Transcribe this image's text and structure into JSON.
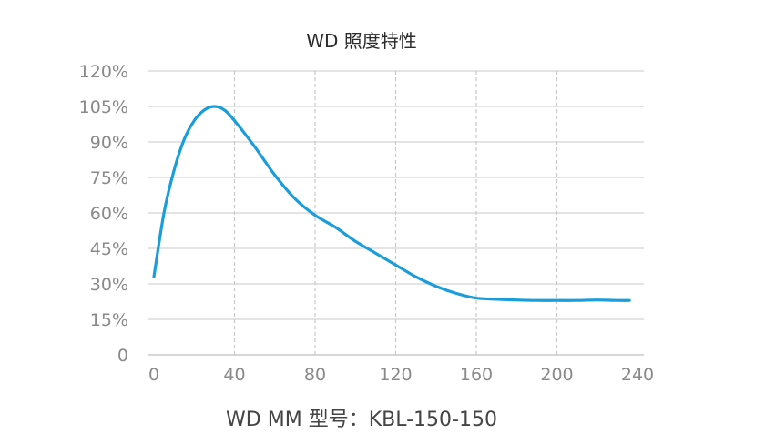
{
  "chart_data": {
    "type": "line",
    "title": "WD 照度特性",
    "xlabel": "WD MM 型号：KBL-150-150",
    "ylabel": "",
    "xlim": [
      0,
      240
    ],
    "ylim": [
      0,
      120
    ],
    "x_ticks": [
      0,
      40,
      80,
      120,
      160,
      200,
      240
    ],
    "x_tick_labels": [
      "0",
      "40",
      "80",
      "120",
      "160",
      "200",
      "240"
    ],
    "y_ticks": [
      0,
      15,
      30,
      45,
      60,
      75,
      90,
      105,
      120
    ],
    "y_tick_labels": [
      "0",
      "15%",
      "30%",
      "45%",
      "60%",
      "75%",
      "90%",
      "105%",
      "120%"
    ],
    "grid": "horizontal solid, vertical dashed",
    "series": [
      {
        "color": "#1a9ddb",
        "x": [
          0,
          5,
          10,
          15,
          20,
          25,
          30,
          35,
          40,
          50,
          60,
          70,
          80,
          90,
          100,
          110,
          120,
          130,
          140,
          150,
          160,
          170,
          180,
          190,
          200,
          210,
          220,
          230,
          236
        ],
        "y": [
          33,
          60,
          78,
          91,
          99,
          103.5,
          105,
          103.5,
          99,
          88,
          76,
          66,
          59,
          54,
          48,
          43,
          38,
          33,
          29,
          26,
          24,
          23.5,
          23.2,
          23,
          23,
          23,
          23.2,
          23,
          23
        ]
      }
    ]
  }
}
